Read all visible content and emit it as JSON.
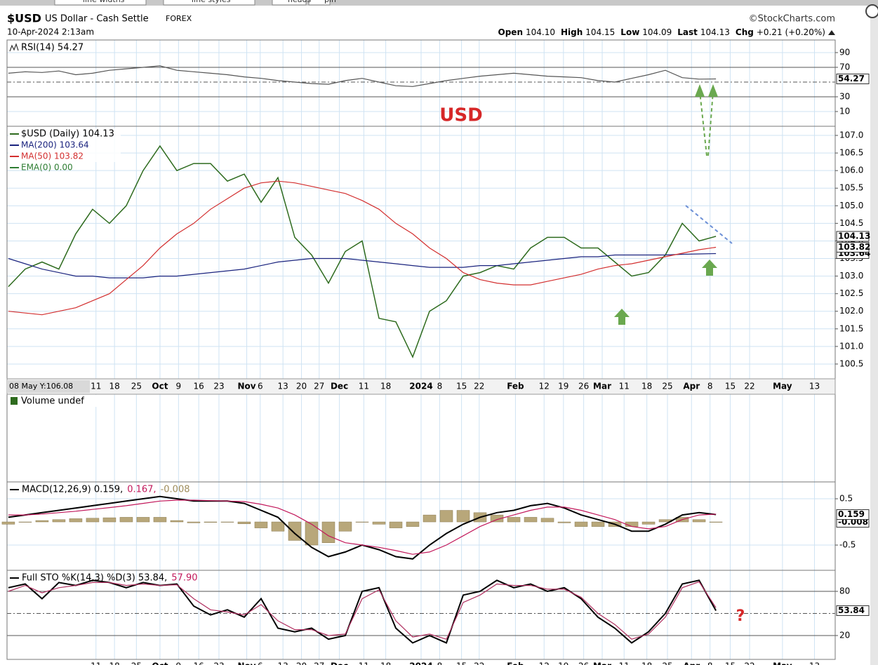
{
  "header": {
    "symbol": "$USD",
    "name": "US Dollar - Cash Settle",
    "exchange": "FOREX",
    "copyright": "©StockCharts.com",
    "date": "10-Apr-2024 2:13am",
    "quote": [
      {
        "label": "Open",
        "value": "104.10"
      },
      {
        "label": "High",
        "value": "104.15"
      },
      {
        "label": "Low",
        "value": "104.09"
      },
      {
        "label": "Last",
        "value": "104.13"
      },
      {
        "label": "Chg",
        "value": "+0.21 (+0.20%)"
      }
    ],
    "cursor_label": "08 May Y:106.08",
    "toolbar": [
      "line widths",
      "line styles",
      "heads",
      "pin"
    ]
  },
  "x_axis": {
    "xlim": [
      -0.08,
      49.08
    ],
    "xticks": [
      {
        "value": 5.2,
        "label": "11"
      },
      {
        "value": 6.3,
        "label": "18"
      },
      {
        "value": 7.6,
        "label": "25"
      },
      {
        "value": 9.0,
        "label": "Oct"
      },
      {
        "value": 10.1,
        "label": "9"
      },
      {
        "value": 11.3,
        "label": "16"
      },
      {
        "value": 12.5,
        "label": "23"
      },
      {
        "value": 14.15,
        "label": "Nov"
      },
      {
        "value": 14.95,
        "label": "6"
      },
      {
        "value": 16.3,
        "label": "13"
      },
      {
        "value": 17.4,
        "label": "20"
      },
      {
        "value": 18.45,
        "label": "27"
      },
      {
        "value": 19.65,
        "label": "Dec"
      },
      {
        "value": 21.1,
        "label": "11"
      },
      {
        "value": 22.4,
        "label": "18"
      },
      {
        "value": 24.5,
        "label": "2024"
      },
      {
        "value": 25.6,
        "label": "8"
      },
      {
        "value": 26.9,
        "label": "15"
      },
      {
        "value": 27.95,
        "label": "22"
      },
      {
        "value": 30.1,
        "label": "Feb"
      },
      {
        "value": 31.8,
        "label": "12"
      },
      {
        "value": 32.95,
        "label": "19"
      },
      {
        "value": 34.15,
        "label": "26"
      },
      {
        "value": 35.25,
        "label": "Mar"
      },
      {
        "value": 36.55,
        "label": "11"
      },
      {
        "value": 37.9,
        "label": "18"
      },
      {
        "value": 39.125,
        "label": "25"
      },
      {
        "value": 40.55,
        "label": "Apr"
      },
      {
        "value": 41.65,
        "label": "8"
      },
      {
        "value": 42.85,
        "label": "15"
      },
      {
        "value": 44.0,
        "label": "22"
      },
      {
        "value": 45.95,
        "label": "May"
      },
      {
        "value": 47.85,
        "label": "13"
      }
    ]
  },
  "chart_data": [
    {
      "type": "line",
      "title": "RSI(14) 54.27",
      "ylim": [
        -10,
        107.1
      ],
      "yticks": [
        90,
        70,
        30,
        10
      ],
      "reference_lines": [
        {
          "value": 70,
          "style": "solid"
        },
        {
          "value": 50,
          "style": "dashdot"
        },
        {
          "value": 30,
          "style": "solid"
        }
      ],
      "series": [
        {
          "name": "RSI(14)",
          "color": "#555555",
          "label_box": true,
          "values": [
            62,
            64,
            63,
            65,
            60,
            62,
            66,
            68,
            70,
            72,
            66,
            64,
            62,
            60,
            57,
            55,
            52,
            50,
            48,
            47,
            52,
            55,
            50,
            45,
            44,
            48,
            52,
            55,
            58,
            60,
            62,
            60,
            58,
            57,
            56,
            52,
            50,
            55,
            60,
            66,
            56,
            54,
            54.27
          ]
        }
      ]
    },
    {
      "type": "line",
      "annotation": "USD",
      "extra_legend": {
        "name": "EMA(0) 0.00",
        "color": "#2e7d32"
      },
      "ylim": [
        100.08,
        107.26
      ],
      "yticks": [
        {
          "value": 107,
          "label": "107.0"
        },
        106.5,
        {
          "value": 106,
          "label": "106.0"
        },
        105.5,
        {
          "value": 105,
          "label": "105.0"
        },
        104.5,
        {
          "value": 104,
          "label": "104.0"
        },
        103.5,
        {
          "value": 103,
          "label": "103.0"
        },
        102.5,
        {
          "value": 102,
          "label": "102.0"
        },
        101.5,
        {
          "value": 101,
          "label": "101.0"
        },
        100.5
      ],
      "series": [
        {
          "name": "$USD (Daily) 104.13",
          "color": "#2e6b1e",
          "width": 1.5,
          "label_box": true,
          "values": [
            102.7,
            103.2,
            103.4,
            103.2,
            104.2,
            104.9,
            104.5,
            105.0,
            106.0,
            106.7,
            106.0,
            106.2,
            106.2,
            105.7,
            105.9,
            105.1,
            105.8,
            104.1,
            103.6,
            102.8,
            103.7,
            104.0,
            101.8,
            101.7,
            100.7,
            102.0,
            102.3,
            103.0,
            103.1,
            103.3,
            103.2,
            103.8,
            104.1,
            104.1,
            103.8,
            103.8,
            103.4,
            103.0,
            103.1,
            103.6,
            104.5,
            104.0,
            104.13
          ]
        },
        {
          "name": "MA(200) 103.64",
          "color": "#1a237e",
          "width": 1.2,
          "label_box": true,
          "values": [
            103.5,
            103.35,
            103.2,
            103.1,
            103.0,
            103.0,
            102.95,
            102.95,
            102.95,
            103.0,
            103.0,
            103.05,
            103.1,
            103.15,
            103.2,
            103.3,
            103.4,
            103.45,
            103.5,
            103.5,
            103.5,
            103.45,
            103.4,
            103.35,
            103.3,
            103.25,
            103.25,
            103.25,
            103.3,
            103.3,
            103.35,
            103.4,
            103.45,
            103.5,
            103.55,
            103.55,
            103.6,
            103.6,
            103.6,
            103.6,
            103.62,
            103.63,
            103.64
          ]
        },
        {
          "name": "MA(50) 103.82",
          "color": "#d32f2f",
          "width": 1.2,
          "label_box": true,
          "values": [
            102.0,
            101.95,
            101.9,
            102.0,
            102.1,
            102.3,
            102.5,
            102.9,
            103.3,
            103.8,
            104.2,
            104.5,
            104.9,
            105.2,
            105.5,
            105.65,
            105.7,
            105.65,
            105.55,
            105.45,
            105.35,
            105.15,
            104.9,
            104.5,
            104.2,
            103.8,
            103.5,
            103.1,
            102.9,
            102.8,
            102.75,
            102.75,
            102.85,
            102.95,
            103.05,
            103.2,
            103.3,
            103.35,
            103.45,
            103.55,
            103.65,
            103.75,
            103.82
          ]
        }
      ]
    },
    {
      "type": "volume",
      "title": "Volume undef"
    },
    {
      "type": "line",
      "title_parts": [
        {
          "text": "MACD(12,26,9) 0.159,",
          "color": "#000000"
        },
        {
          "text": "0.167,",
          "color": "#c2185b"
        },
        {
          "text": "-0.008",
          "color": "#9e8c5a"
        }
      ],
      "ylim": [
        -1.045,
        0.864
      ],
      "yticks": [
        0.5,
        -0.5
      ],
      "series": [
        {
          "name": "Histogram",
          "kind": "bar",
          "color": "#b8a77a",
          "label_box": true,
          "values": [
            -0.05,
            0.0,
            0.03,
            0.05,
            0.07,
            0.08,
            0.09,
            0.1,
            0.1,
            0.1,
            0.03,
            -0.02,
            -0.01,
            0.0,
            -0.04,
            -0.13,
            -0.2,
            -0.4,
            -0.5,
            -0.45,
            -0.2,
            0.0,
            -0.05,
            -0.13,
            -0.1,
            0.15,
            0.25,
            0.25,
            0.2,
            0.15,
            0.1,
            0.1,
            0.08,
            -0.02,
            -0.1,
            -0.1,
            -0.1,
            -0.1,
            -0.05,
            0.05,
            0.1,
            0.05,
            -0.008
          ]
        },
        {
          "name": "MACD",
          "color": "#000000",
          "width": 2,
          "label_box": true,
          "values": [
            0.1,
            0.15,
            0.2,
            0.25,
            0.3,
            0.35,
            0.4,
            0.45,
            0.5,
            0.55,
            0.5,
            0.45,
            0.45,
            0.45,
            0.4,
            0.25,
            0.1,
            -0.25,
            -0.55,
            -0.75,
            -0.65,
            -0.5,
            -0.6,
            -0.75,
            -0.8,
            -0.5,
            -0.25,
            -0.05,
            0.1,
            0.2,
            0.25,
            0.35,
            0.4,
            0.3,
            0.15,
            0.05,
            -0.05,
            -0.2,
            -0.2,
            -0.05,
            0.15,
            0.2,
            0.159
          ]
        },
        {
          "name": "Signal",
          "color": "#c2185b",
          "width": 1.2,
          "values": [
            0.15,
            0.15,
            0.17,
            0.2,
            0.23,
            0.27,
            0.31,
            0.35,
            0.4,
            0.45,
            0.47,
            0.47,
            0.46,
            0.45,
            0.44,
            0.38,
            0.3,
            0.15,
            -0.05,
            -0.3,
            -0.45,
            -0.5,
            -0.55,
            -0.62,
            -0.7,
            -0.65,
            -0.5,
            -0.3,
            -0.1,
            0.05,
            0.15,
            0.25,
            0.32,
            0.32,
            0.25,
            0.15,
            0.05,
            -0.1,
            -0.15,
            -0.1,
            0.05,
            0.15,
            0.167
          ]
        }
      ]
    },
    {
      "type": "line",
      "annotation": "?",
      "title_parts": [
        {
          "text": "Full STO %K(14,3) %D(3) 53.84,",
          "color": "#000000"
        },
        {
          "text": "57.90",
          "color": "#c2185b"
        }
      ],
      "ylim": [
        -12.4,
        108.6
      ],
      "yticks": [
        80,
        20
      ],
      "reference_lines": [
        {
          "value": 80,
          "style": "solid"
        },
        {
          "value": 50,
          "style": "dashdot"
        },
        {
          "value": 20,
          "style": "solid"
        }
      ],
      "series": [
        {
          "name": "%K",
          "color": "#000000",
          "width": 2,
          "label_box": true,
          "values": [
            85,
            90,
            70,
            92,
            88,
            95,
            92,
            85,
            92,
            88,
            90,
            60,
            48,
            55,
            45,
            70,
            30,
            25,
            30,
            15,
            20,
            80,
            85,
            30,
            10,
            20,
            10,
            75,
            80,
            95,
            85,
            90,
            80,
            85,
            70,
            45,
            30,
            10,
            25,
            50,
            90,
            95,
            53.84
          ]
        },
        {
          "name": "%D",
          "color": "#b03060",
          "width": 1.2,
          "values": [
            80,
            88,
            78,
            85,
            88,
            92,
            92,
            88,
            90,
            88,
            89,
            70,
            55,
            52,
            48,
            62,
            40,
            28,
            28,
            20,
            22,
            70,
            82,
            40,
            18,
            22,
            15,
            65,
            75,
            90,
            88,
            88,
            83,
            83,
            72,
            50,
            35,
            15,
            22,
            45,
            85,
            93,
            57.9
          ]
        }
      ]
    }
  ]
}
